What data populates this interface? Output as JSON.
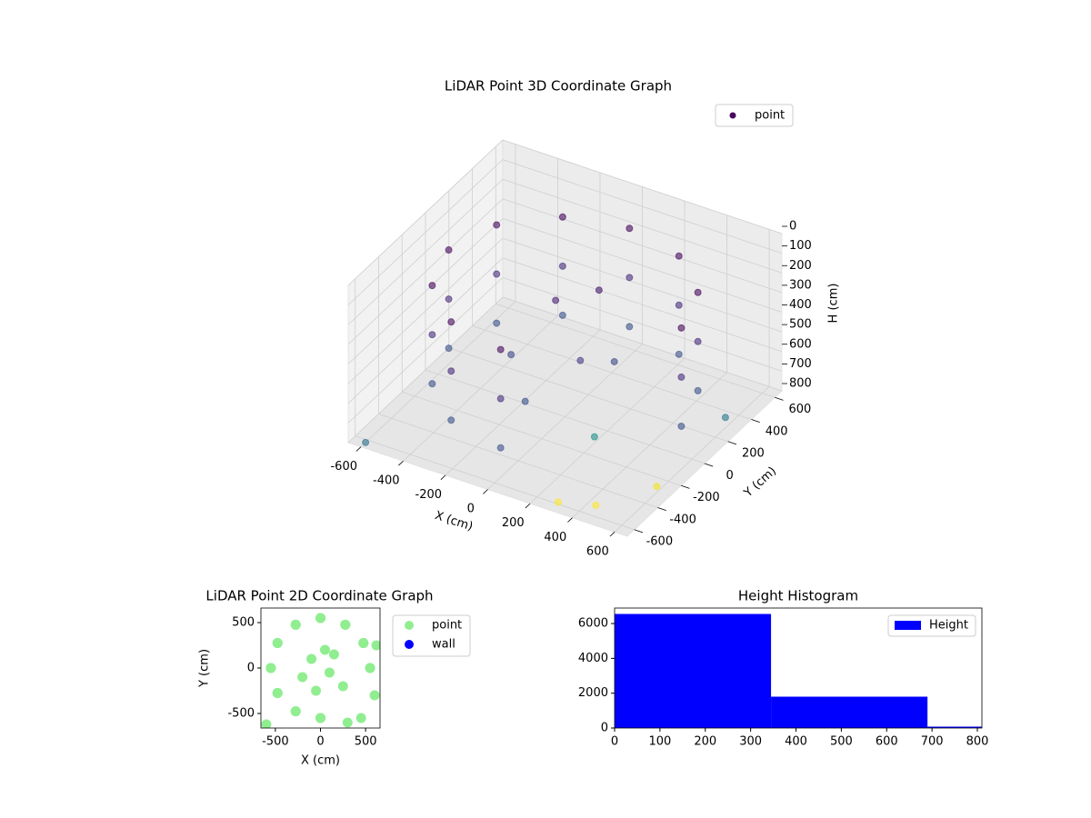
{
  "chart_data": [
    {
      "type": "scatter3d",
      "title": "LiDAR Point 3D Coordinate Graph",
      "xlabel": "X (cm)",
      "ylabel": "Y (cm)",
      "zlabel": "H (cm)",
      "xlim": [
        -660,
        660
      ],
      "ylim": [
        -660,
        660
      ],
      "zlim": [
        800,
        0
      ],
      "xticks": [
        -600,
        -400,
        -200,
        0,
        200,
        400,
        600
      ],
      "yticks": [
        -600,
        -400,
        -200,
        0,
        200,
        400,
        600
      ],
      "zticks": [
        0,
        100,
        200,
        300,
        400,
        500,
        600,
        700,
        800
      ],
      "grid": true,
      "legend": "upper right",
      "alpha": 0.6,
      "series": [
        {
          "name": "point",
          "x": [
            0,
            0,
            0,
            -275,
            -275,
            -275,
            -476,
            -476,
            -476,
            -550,
            -550,
            -550,
            -476,
            -476,
            -476,
            -275,
            -275,
            -275,
            0,
            0,
            0,
            275,
            275,
            275,
            476,
            476,
            476,
            550,
            550,
            550,
            -100,
            100,
            -200,
            50,
            150,
            -50,
            300,
            450,
            600,
            620,
            250,
            -600
          ],
          "y": [
            550,
            550,
            550,
            476,
            476,
            476,
            275,
            275,
            275,
            0,
            0,
            0,
            -275,
            -275,
            -275,
            -476,
            -476,
            -476,
            -550,
            -550,
            -550,
            476,
            476,
            476,
            275,
            275,
            275,
            0,
            0,
            0,
            100,
            -50,
            -100,
            200,
            150,
            -250,
            -600,
            -550,
            -300,
            250,
            -200,
            -620
          ],
          "z": [
            150,
            400,
            650,
            150,
            400,
            650,
            150,
            400,
            650,
            150,
            400,
            650,
            150,
            400,
            650,
            150,
            400,
            650,
            150,
            400,
            650,
            150,
            400,
            650,
            150,
            400,
            650,
            150,
            400,
            650,
            300,
            450,
            500,
            250,
            550,
            600,
            790,
            780,
            770,
            720,
            700,
            800
          ],
          "colors": [
            "#46085c",
            "#472d7b",
            "#3b528b",
            "#46085c",
            "#472d7b",
            "#3b528b",
            "#46085c",
            "#472d7b",
            "#3b528b",
            "#46085c",
            "#472d7b",
            "#3b528b",
            "#46085c",
            "#472d7b",
            "#3b528b",
            "#46085c",
            "#472d7b",
            "#3b528b",
            "#46085c",
            "#472d7b",
            "#3b528b",
            "#46085c",
            "#472d7b",
            "#3b528b",
            "#46085c",
            "#472d7b",
            "#3b528b",
            "#46085c",
            "#472d7b",
            "#3b528b",
            "#481f70",
            "#433e85",
            "#404688",
            "#48186a",
            "#3e4a89",
            "#3b528b",
            "#fde725",
            "#fde725",
            "#f1e51d",
            "#2a788e",
            "#21918c",
            "#2c728e"
          ]
        }
      ]
    },
    {
      "type": "scatter",
      "title": "LiDAR Point 2D Coordinate Graph",
      "xlabel": "X (cm)",
      "ylabel": "Y (cm)",
      "xlim": [
        -660,
        660
      ],
      "ylim": [
        -660,
        660
      ],
      "xticks": [
        -500,
        0,
        500
      ],
      "yticks": [
        -500,
        0,
        500
      ],
      "legend": "outside right",
      "series": [
        {
          "name": "point",
          "color": "#90ee90",
          "x": [
            0,
            0,
            0,
            -275,
            -275,
            -275,
            -476,
            -476,
            -476,
            -550,
            -550,
            -550,
            -476,
            -476,
            -476,
            -275,
            -275,
            -275,
            0,
            0,
            0,
            275,
            275,
            275,
            476,
            476,
            476,
            550,
            550,
            550,
            -100,
            100,
            -200,
            50,
            150,
            -50,
            300,
            450,
            600,
            620,
            250,
            -600
          ],
          "y": [
            550,
            550,
            550,
            476,
            476,
            476,
            275,
            275,
            275,
            0,
            0,
            0,
            -275,
            -275,
            -275,
            -476,
            -476,
            -476,
            -550,
            -550,
            -550,
            476,
            476,
            476,
            275,
            275,
            275,
            0,
            0,
            0,
            100,
            -50,
            -100,
            200,
            150,
            -250,
            -600,
            -550,
            -300,
            250,
            -200,
            -620
          ]
        },
        {
          "name": "wall",
          "color": "#0000ff",
          "x": [],
          "y": []
        }
      ]
    },
    {
      "type": "histogram",
      "title": "Height Histogram",
      "bins": [
        0,
        345,
        690,
        1035
      ],
      "series": [
        {
          "name": "Height",
          "color": "#0000ff",
          "values": [
            6550,
            1800,
            80
          ]
        }
      ],
      "xlim": [
        0,
        810
      ],
      "ylim": [
        0,
        6890
      ],
      "xticks": [
        0,
        100,
        200,
        300,
        400,
        500,
        600,
        700,
        800
      ],
      "yticks": [
        0,
        2000,
        4000,
        6000
      ],
      "legend": "upper right"
    }
  ]
}
